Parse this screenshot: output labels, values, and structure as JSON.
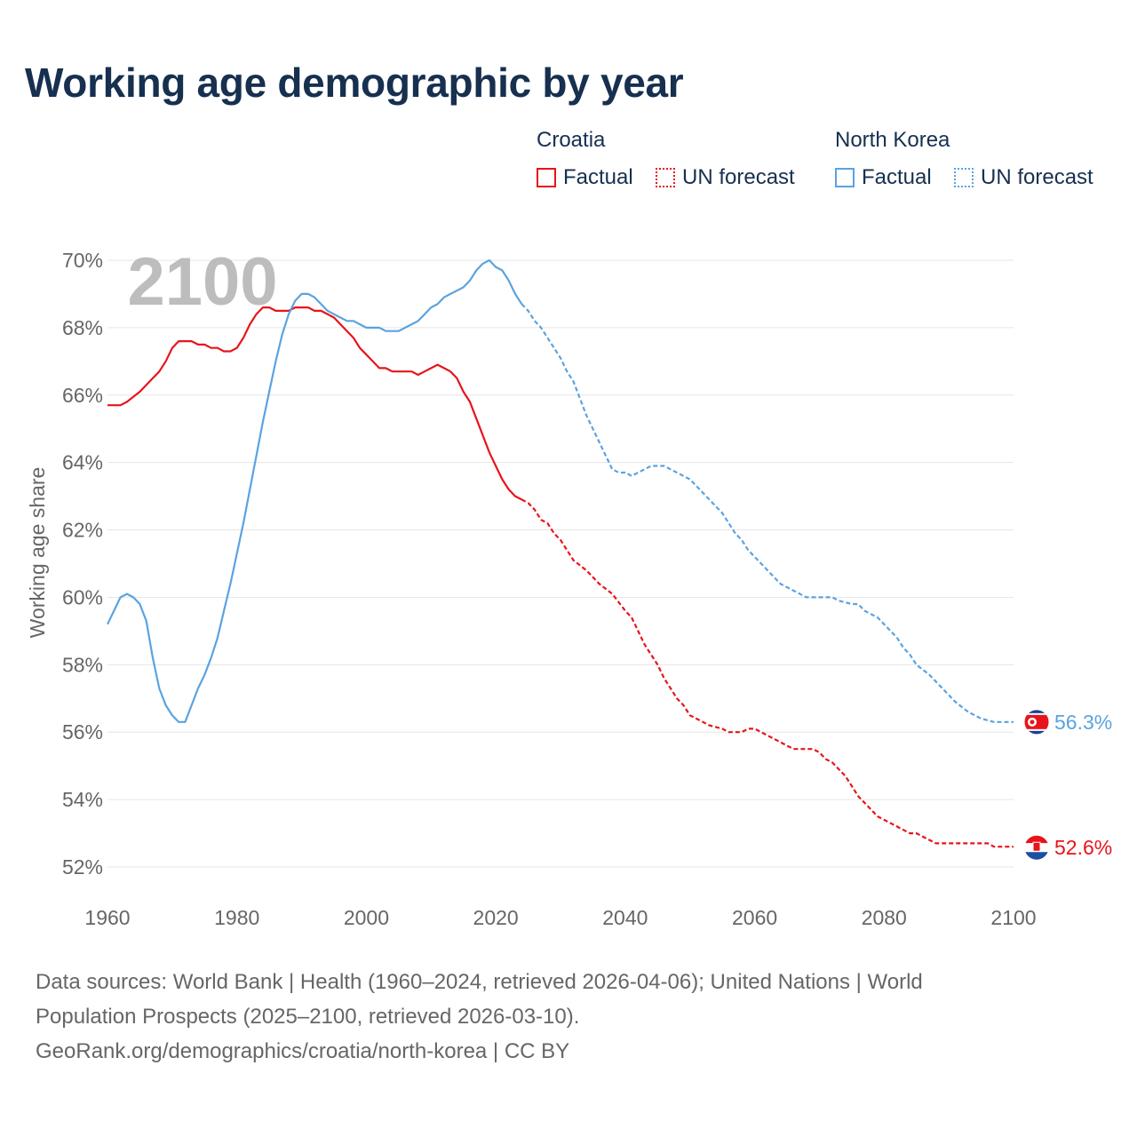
{
  "title": "Working age demographic by year",
  "legend": {
    "groups": [
      {
        "name": "Croatia",
        "factual_label": "Factual",
        "forecast_label": "UN forecast",
        "color": "#e8141c"
      },
      {
        "name": "North Korea",
        "factual_label": "Factual",
        "forecast_label": "UN forecast",
        "color": "#5ba3e0"
      }
    ]
  },
  "year_watermark": "2100",
  "footer": {
    "line1": "Data sources: World Bank | Health (1960–2024, retrieved 2026-04-06); United Nations | World",
    "line2": "Population Prospects (2025–2100, retrieved 2026-03-10).",
    "line3": "GeoRank.org/demographics/croatia/north-korea | CC BY"
  },
  "chart_data": {
    "type": "line",
    "title": "Working age demographic by year",
    "xlabel": "",
    "ylabel": "Working age share",
    "xlim": [
      1960,
      2100
    ],
    "ylim": [
      51.5,
      70.5
    ],
    "x_ticks": [
      1960,
      1980,
      2000,
      2020,
      2040,
      2060,
      2080,
      2100
    ],
    "y_ticks": [
      52,
      54,
      56,
      58,
      60,
      62,
      64,
      66,
      68,
      70
    ],
    "y_tick_labels": [
      "52%",
      "54%",
      "56%",
      "58%",
      "60%",
      "62%",
      "64%",
      "66%",
      "68%",
      "70%"
    ],
    "grid": true,
    "factual_end": 2024,
    "series": [
      {
        "name": "Croatia",
        "color": "#e8141c",
        "end_label": "52.6%",
        "points": [
          [
            1960,
            65.7
          ],
          [
            1962,
            65.7
          ],
          [
            1963,
            65.8
          ],
          [
            1965,
            66.1
          ],
          [
            1967,
            66.5
          ],
          [
            1968,
            66.7
          ],
          [
            1969,
            67.0
          ],
          [
            1970,
            67.4
          ],
          [
            1971,
            67.6
          ],
          [
            1973,
            67.6
          ],
          [
            1974,
            67.5
          ],
          [
            1975,
            67.5
          ],
          [
            1976,
            67.4
          ],
          [
            1977,
            67.4
          ],
          [
            1978,
            67.3
          ],
          [
            1979,
            67.3
          ],
          [
            1980,
            67.4
          ],
          [
            1981,
            67.7
          ],
          [
            1982,
            68.1
          ],
          [
            1983,
            68.4
          ],
          [
            1984,
            68.6
          ],
          [
            1985,
            68.6
          ],
          [
            1986,
            68.5
          ],
          [
            1988,
            68.5
          ],
          [
            1989,
            68.6
          ],
          [
            1991,
            68.6
          ],
          [
            1992,
            68.5
          ],
          [
            1993,
            68.5
          ],
          [
            1995,
            68.3
          ],
          [
            1996,
            68.1
          ],
          [
            1997,
            67.9
          ],
          [
            1998,
            67.7
          ],
          [
            1999,
            67.4
          ],
          [
            2000,
            67.2
          ],
          [
            2001,
            67.0
          ],
          [
            2002,
            66.8
          ],
          [
            2003,
            66.8
          ],
          [
            2004,
            66.7
          ],
          [
            2007,
            66.7
          ],
          [
            2008,
            66.6
          ],
          [
            2009,
            66.7
          ],
          [
            2011,
            66.9
          ],
          [
            2012,
            66.8
          ],
          [
            2013,
            66.7
          ],
          [
            2014,
            66.5
          ],
          [
            2015,
            66.1
          ],
          [
            2016,
            65.8
          ],
          [
            2017,
            65.3
          ],
          [
            2018,
            64.8
          ],
          [
            2019,
            64.3
          ],
          [
            2020,
            63.9
          ],
          [
            2021,
            63.5
          ],
          [
            2022,
            63.2
          ],
          [
            2023,
            63.0
          ],
          [
            2024,
            62.9
          ],
          [
            2025,
            62.8
          ],
          [
            2026,
            62.6
          ],
          [
            2027,
            62.3
          ],
          [
            2028,
            62.2
          ],
          [
            2029,
            61.9
          ],
          [
            2030,
            61.7
          ],
          [
            2031,
            61.4
          ],
          [
            2032,
            61.1
          ],
          [
            2034,
            60.8
          ],
          [
            2036,
            60.4
          ],
          [
            2038,
            60.1
          ],
          [
            2040,
            59.6
          ],
          [
            2041,
            59.4
          ],
          [
            2042,
            59.0
          ],
          [
            2043,
            58.6
          ],
          [
            2044,
            58.3
          ],
          [
            2045,
            58.0
          ],
          [
            2046,
            57.6
          ],
          [
            2047,
            57.3
          ],
          [
            2048,
            57.0
          ],
          [
            2049,
            56.8
          ],
          [
            2050,
            56.5
          ],
          [
            2051,
            56.4
          ],
          [
            2052,
            56.3
          ],
          [
            2053,
            56.2
          ],
          [
            2055,
            56.1
          ],
          [
            2056,
            56.0
          ],
          [
            2058,
            56.0
          ],
          [
            2059,
            56.1
          ],
          [
            2060,
            56.1
          ],
          [
            2061,
            56.0
          ],
          [
            2062,
            55.9
          ],
          [
            2064,
            55.7
          ],
          [
            2066,
            55.5
          ],
          [
            2069,
            55.5
          ],
          [
            2070,
            55.4
          ],
          [
            2071,
            55.2
          ],
          [
            2072,
            55.1
          ],
          [
            2073,
            54.9
          ],
          [
            2074,
            54.7
          ],
          [
            2075,
            54.4
          ],
          [
            2076,
            54.1
          ],
          [
            2077,
            53.9
          ],
          [
            2078,
            53.7
          ],
          [
            2079,
            53.5
          ],
          [
            2081,
            53.3
          ],
          [
            2083,
            53.1
          ],
          [
            2084,
            53.0
          ],
          [
            2085,
            53.0
          ],
          [
            2086,
            52.9
          ],
          [
            2087,
            52.8
          ],
          [
            2088,
            52.7
          ],
          [
            2096,
            52.7
          ],
          [
            2097,
            52.6
          ],
          [
            2100,
            52.6
          ]
        ]
      },
      {
        "name": "North Korea",
        "color": "#5ba3e0",
        "end_label": "56.3%",
        "points": [
          [
            1960,
            59.2
          ],
          [
            1961,
            59.6
          ],
          [
            1962,
            60.0
          ],
          [
            1963,
            60.1
          ],
          [
            1964,
            60.0
          ],
          [
            1965,
            59.8
          ],
          [
            1966,
            59.3
          ],
          [
            1967,
            58.2
          ],
          [
            1968,
            57.3
          ],
          [
            1969,
            56.8
          ],
          [
            1970,
            56.5
          ],
          [
            1971,
            56.3
          ],
          [
            1972,
            56.3
          ],
          [
            1973,
            56.8
          ],
          [
            1974,
            57.3
          ],
          [
            1975,
            57.7
          ],
          [
            1976,
            58.2
          ],
          [
            1977,
            58.8
          ],
          [
            1978,
            59.6
          ],
          [
            1979,
            60.4
          ],
          [
            1980,
            61.3
          ],
          [
            1981,
            62.2
          ],
          [
            1982,
            63.2
          ],
          [
            1983,
            64.2
          ],
          [
            1984,
            65.2
          ],
          [
            1985,
            66.1
          ],
          [
            1986,
            67.0
          ],
          [
            1987,
            67.8
          ],
          [
            1988,
            68.4
          ],
          [
            1989,
            68.8
          ],
          [
            1990,
            69.0
          ],
          [
            1991,
            69.0
          ],
          [
            1992,
            68.9
          ],
          [
            1993,
            68.7
          ],
          [
            1994,
            68.5
          ],
          [
            1995,
            68.4
          ],
          [
            1996,
            68.3
          ],
          [
            1997,
            68.2
          ],
          [
            1998,
            68.2
          ],
          [
            1999,
            68.1
          ],
          [
            2000,
            68.0
          ],
          [
            2002,
            68.0
          ],
          [
            2003,
            67.9
          ],
          [
            2005,
            67.9
          ],
          [
            2006,
            68.0
          ],
          [
            2007,
            68.1
          ],
          [
            2008,
            68.2
          ],
          [
            2009,
            68.4
          ],
          [
            2010,
            68.6
          ],
          [
            2011,
            68.7
          ],
          [
            2012,
            68.9
          ],
          [
            2013,
            69.0
          ],
          [
            2014,
            69.1
          ],
          [
            2015,
            69.2
          ],
          [
            2016,
            69.4
          ],
          [
            2017,
            69.7
          ],
          [
            2018,
            69.9
          ],
          [
            2019,
            70.0
          ],
          [
            2020,
            69.8
          ],
          [
            2021,
            69.7
          ],
          [
            2022,
            69.4
          ],
          [
            2023,
            69.0
          ],
          [
            2024,
            68.7
          ],
          [
            2025,
            68.5
          ],
          [
            2026,
            68.2
          ],
          [
            2027,
            68.0
          ],
          [
            2028,
            67.7
          ],
          [
            2029,
            67.4
          ],
          [
            2030,
            67.1
          ],
          [
            2031,
            66.7
          ],
          [
            2032,
            66.4
          ],
          [
            2033,
            65.9
          ],
          [
            2034,
            65.4
          ],
          [
            2035,
            65.0
          ],
          [
            2036,
            64.6
          ],
          [
            2037,
            64.2
          ],
          [
            2038,
            63.8
          ],
          [
            2039,
            63.7
          ],
          [
            2040,
            63.7
          ],
          [
            2041,
            63.6
          ],
          [
            2042,
            63.7
          ],
          [
            2043,
            63.8
          ],
          [
            2044,
            63.9
          ],
          [
            2046,
            63.9
          ],
          [
            2047,
            63.8
          ],
          [
            2050,
            63.5
          ],
          [
            2051,
            63.3
          ],
          [
            2052,
            63.1
          ],
          [
            2053,
            62.9
          ],
          [
            2055,
            62.5
          ],
          [
            2056,
            62.2
          ],
          [
            2057,
            61.9
          ],
          [
            2058,
            61.7
          ],
          [
            2059,
            61.4
          ],
          [
            2060,
            61.2
          ],
          [
            2062,
            60.8
          ],
          [
            2063,
            60.6
          ],
          [
            2064,
            60.4
          ],
          [
            2066,
            60.2
          ],
          [
            2068,
            60.0
          ],
          [
            2072,
            60.0
          ],
          [
            2073,
            59.9
          ],
          [
            2075,
            59.8
          ],
          [
            2076,
            59.8
          ],
          [
            2077,
            59.6
          ],
          [
            2079,
            59.4
          ],
          [
            2080,
            59.2
          ],
          [
            2081,
            59.0
          ],
          [
            2082,
            58.8
          ],
          [
            2083,
            58.5
          ],
          [
            2084,
            58.3
          ],
          [
            2085,
            58.0
          ],
          [
            2087,
            57.7
          ],
          [
            2089,
            57.3
          ],
          [
            2091,
            56.9
          ],
          [
            2093,
            56.6
          ],
          [
            2095,
            56.4
          ],
          [
            2097,
            56.3
          ],
          [
            2100,
            56.3
          ]
        ]
      }
    ]
  }
}
